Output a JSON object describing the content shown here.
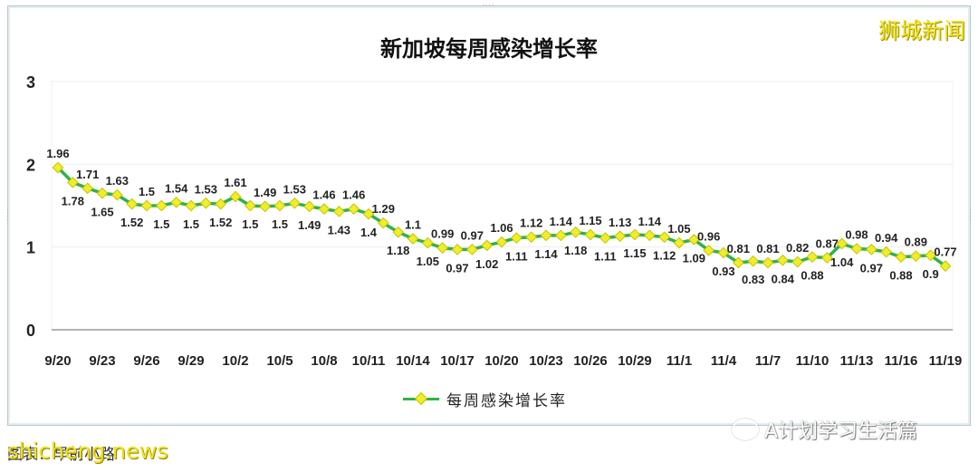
{
  "brand_watermark": "狮城新闻",
  "source_label": "图表：早前小路",
  "site_watermark": "shicheng.news",
  "wechat_watermark": "A计划学习生活篇",
  "colors": {
    "line": "#2db34a",
    "marker_fill": "#f0ee2a",
    "marker_stroke": "#c9c200",
    "brand_yellow": "#f2e320"
  },
  "chart_data": {
    "type": "line",
    "title": "新加坡每周感染增长率",
    "xlabel": "",
    "ylabel": "",
    "ylim": [
      0,
      3
    ],
    "yticks": [
      0,
      1,
      2,
      3
    ],
    "grid": true,
    "legend_position": "bottom",
    "x_tick_labels": [
      "9/20",
      "9/23",
      "9/26",
      "9/29",
      "10/2",
      "10/5",
      "10/8",
      "10/11",
      "10/14",
      "10/17",
      "10/20",
      "10/23",
      "10/26",
      "10/29",
      "11/1",
      "11/4",
      "11/7",
      "11/10",
      "11/13",
      "11/16",
      "11/19"
    ],
    "x": [
      "9/20",
      "9/21",
      "9/22",
      "9/23",
      "9/24",
      "9/25",
      "9/26",
      "9/27",
      "9/28",
      "9/29",
      "9/30",
      "10/1",
      "10/2",
      "10/3",
      "10/4",
      "10/5",
      "10/6",
      "10/7",
      "10/8",
      "10/9",
      "10/10",
      "10/11",
      "10/12",
      "10/13",
      "10/14",
      "10/15",
      "10/16",
      "10/17",
      "10/18",
      "10/19",
      "10/20",
      "10/21",
      "10/22",
      "10/23",
      "10/24",
      "10/25",
      "10/26",
      "10/27",
      "10/28",
      "10/29",
      "10/30",
      "10/31",
      "11/1",
      "11/2",
      "11/3",
      "11/4",
      "11/5",
      "11/6",
      "11/7",
      "11/8",
      "11/9",
      "11/10",
      "11/11",
      "11/12",
      "11/13",
      "11/14",
      "11/15",
      "11/16",
      "11/17",
      "11/18",
      "11/19"
    ],
    "series": [
      {
        "name": "每周感染增长率",
        "values": [
          1.96,
          1.78,
          1.71,
          1.65,
          1.63,
          1.52,
          1.5,
          1.5,
          1.54,
          1.5,
          1.53,
          1.52,
          1.61,
          1.5,
          1.49,
          1.5,
          1.53,
          1.49,
          1.46,
          1.43,
          1.46,
          1.4,
          1.29,
          1.18,
          1.1,
          1.05,
          0.99,
          0.97,
          0.97,
          1.02,
          1.06,
          1.11,
          1.12,
          1.14,
          1.14,
          1.18,
          1.15,
          1.11,
          1.13,
          1.15,
          1.14,
          1.12,
          1.05,
          1.09,
          0.96,
          0.93,
          0.81,
          0.83,
          0.81,
          0.84,
          0.82,
          0.88,
          0.87,
          1.04,
          0.98,
          0.97,
          0.94,
          0.88,
          0.89,
          0.9,
          0.77
        ]
      }
    ]
  }
}
